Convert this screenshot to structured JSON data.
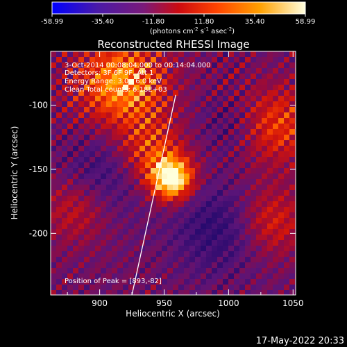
{
  "colorbar": {
    "ticks": [
      "-58.99",
      "-35.40",
      "-11.80",
      "11.80",
      "35.40",
      "58.99"
    ],
    "tick_values": [
      -58.99,
      -35.4,
      -11.8,
      11.8,
      35.4,
      58.99
    ],
    "range": [
      -58.99,
      58.99
    ],
    "units_text": "(photons cm",
    "units_exp1": "-2",
    "units_mid1": " s",
    "units_exp2": "-1",
    "units_mid2": " asec",
    "units_exp3": "-2",
    "units_close": ")"
  },
  "title": "Reconstructed RHESSI Image",
  "annotations": {
    "time": "3-Oct-2014 00:08:04.000 to 00:14:04.000",
    "detectors": "Detectors: 3F 6F 9F, Att 1",
    "energy": "Energy Range: 3.0 - 6.0 keV",
    "clean": "Clean  Total counts: 6.18E+03",
    "peak": "Position of Peak = [893,-82]"
  },
  "axes": {
    "xlabel": "Heliocentric X (arcsec)",
    "ylabel": "Heliocentric Y (arcsec)",
    "xticks": [
      "900",
      "950",
      "1000",
      "1050"
    ],
    "xtick_values": [
      900,
      950,
      1000,
      1050
    ],
    "yticks": [
      "-100",
      "-150",
      "-200"
    ],
    "ytick_values": [
      -100,
      -150,
      -200
    ],
    "xlim": [
      862,
      1052
    ],
    "ylim": [
      -248,
      -58
    ]
  },
  "limb_line": {
    "x_data": [
      925,
      959
    ],
    "y_data": [
      -248,
      -92
    ]
  },
  "footer_date": "17-May-2022 20:33",
  "colors": {
    "background": "#000000",
    "text": "#ffffff"
  }
}
